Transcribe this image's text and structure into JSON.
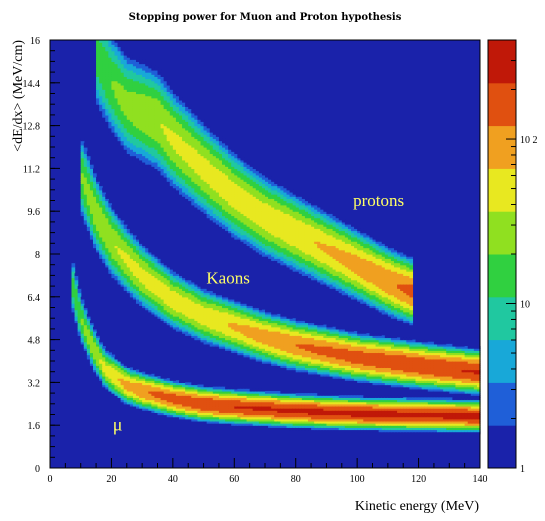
{
  "chart_data": {
    "type": "heatmap",
    "title": "Stopping power for Muon and Proton hypothesis",
    "xlabel": "Kinetic energy (MeV)",
    "ylabel": "<dE/dx> (MeV/cm)",
    "xlim": [
      0,
      140
    ],
    "ylim": [
      0,
      16
    ],
    "x_ticks": [
      "0",
      "20",
      "40",
      "60",
      "80",
      "100",
      "120",
      "140"
    ],
    "y_ticks": [
      "0",
      "1.6",
      "3.2",
      "4.8",
      "6.4",
      "8",
      "9.6",
      "11.2",
      "12.8",
      "14.4",
      "16"
    ],
    "color_scale": "log",
    "zlim": [
      1,
      400
    ],
    "colorbar_ticks": [
      {
        "value": 1,
        "label": "1"
      },
      {
        "value": 10,
        "label": "10"
      },
      {
        "value": 100,
        "label": "10 2"
      }
    ],
    "palette": [
      "#1a22aa",
      "#1f5fd8",
      "#18a8d8",
      "#20c8a0",
      "#30d040",
      "#90e020",
      "#e8e820",
      "#f0a020",
      "#e05010",
      "#c01808"
    ],
    "background_color": "#1a22aa",
    "annotations": [
      {
        "text": "protons",
        "x": 107,
        "y": 9.8
      },
      {
        "text": "Kaons",
        "x": 58,
        "y": 6.9
      },
      {
        "text": "μ",
        "x": 22,
        "y": 1.4
      }
    ],
    "bands": [
      {
        "name": "μ",
        "x": [
          7,
          10,
          14,
          18,
          25,
          30,
          40,
          50,
          60,
          80,
          100,
          120,
          140
        ],
        "y": [
          7.0,
          5.6,
          4.5,
          3.7,
          3.1,
          2.9,
          2.6,
          2.4,
          2.3,
          2.15,
          2.05,
          2.0,
          1.95
        ],
        "peak": [
          15,
          20,
          30,
          45,
          80,
          110,
          160,
          200,
          220,
          240,
          250,
          250,
          250
        ]
      },
      {
        "name": "Kaons",
        "x": [
          10,
          15,
          20,
          25,
          30,
          40,
          50,
          60,
          70,
          80,
          100,
          120,
          140
        ],
        "y": [
          11.0,
          9.5,
          8.5,
          7.8,
          7.2,
          6.3,
          5.7,
          5.3,
          4.9,
          4.6,
          4.15,
          3.85,
          3.6
        ],
        "peak": [
          20,
          30,
          35,
          40,
          45,
          50,
          55,
          70,
          90,
          120,
          160,
          200,
          230
        ]
      },
      {
        "name": "protons",
        "x": [
          15,
          20,
          25,
          30,
          35,
          40,
          50,
          60,
          70,
          80,
          90,
          100,
          110,
          118
        ],
        "y": [
          15.5,
          14.4,
          13.6,
          13.3,
          13.0,
          12.3,
          11.2,
          10.2,
          9.4,
          8.8,
          8.2,
          7.6,
          7.0,
          6.6
        ],
        "peak": [
          15,
          20,
          25,
          30,
          35,
          40,
          45,
          50,
          55,
          60,
          70,
          85,
          110,
          140
        ]
      }
    ]
  }
}
